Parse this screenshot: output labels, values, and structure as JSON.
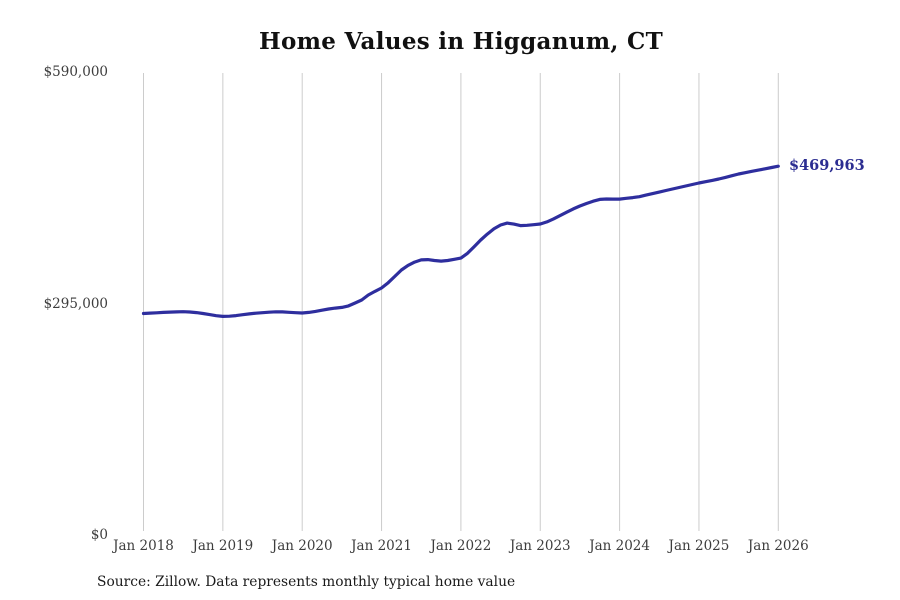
{
  "chart": {
    "title": "Home Values in Higganum, CT",
    "end_label": "$469,963",
    "source_note": "Source: Zillow. Data represents monthly typical home value",
    "colors": {
      "line": "#2e2e9e",
      "end_label_text": "#2b2d91",
      "gridline": "#cccccc",
      "tick_text": "#3d3d3d",
      "title_text": "#111111"
    }
  },
  "chart_data": {
    "type": "line",
    "title": "Home Values in Higganum, CT",
    "xlabel": "",
    "ylabel": "",
    "frequency": "monthly",
    "x_start": "Jan 2018",
    "x_end": "Jan 2026",
    "x_tick_labels": [
      "Jan 2018",
      "Jan 2019",
      "Jan 2020",
      "Jan 2021",
      "Jan 2022",
      "Jan 2023",
      "Jan 2024",
      "Jan 2025",
      "Jan 2026"
    ],
    "y_ticks": [
      {
        "label": "$590,000",
        "value": 590000
      },
      {
        "label": "$295,000",
        "value": 295000
      },
      {
        "label": "$0",
        "value": 0
      }
    ],
    "ylim": [
      0,
      590000
    ],
    "grid": "vertical-only",
    "legend": "none",
    "final_value": 469963,
    "final_value_label": "$469,963",
    "series": [
      {
        "name": "Typical home value",
        "values": [
          282300,
          282800,
          283200,
          283600,
          284000,
          284300,
          284500,
          284200,
          283400,
          282300,
          280900,
          279500,
          278500,
          278800,
          279600,
          280700,
          281800,
          282700,
          283300,
          283900,
          284400,
          284300,
          283800,
          283300,
          282900,
          283600,
          284900,
          286500,
          288000,
          289200,
          290000,
          292000,
          295600,
          299500,
          305800,
          310400,
          314700,
          321500,
          329500,
          337700,
          343500,
          347800,
          350500,
          350900,
          349800,
          349000,
          349800,
          351300,
          352900,
          359000,
          367400,
          375900,
          383500,
          390200,
          395000,
          397500,
          396200,
          394300,
          394600,
          395400,
          396300,
          399000,
          402800,
          407000,
          411300,
          415500,
          419200,
          422400,
          425300,
          427700,
          428200,
          428100,
          428100,
          429000,
          430000,
          431100,
          433100,
          435100,
          437000,
          439000,
          440900,
          442800,
          444700,
          446600,
          448500,
          450200,
          451900,
          453600,
          455700,
          457900,
          460000,
          461700,
          463400,
          465000,
          466700,
          468300,
          469963
        ]
      }
    ]
  }
}
